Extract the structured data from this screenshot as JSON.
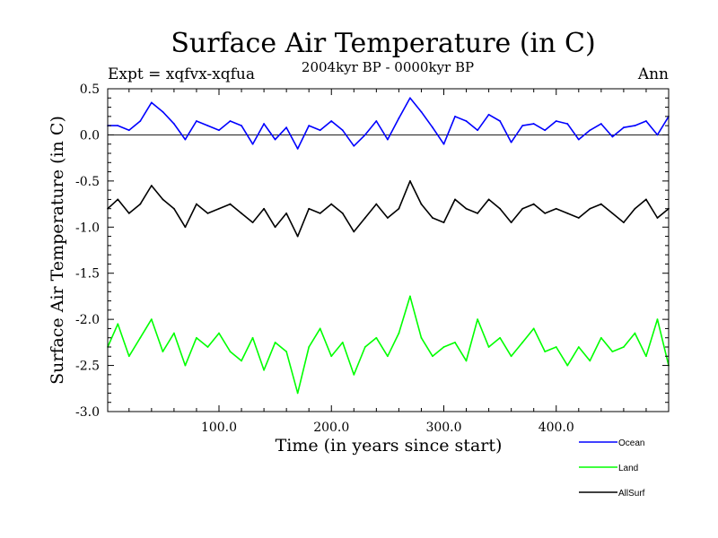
{
  "chart_data": {
    "type": "line",
    "title": "Surface Air Temperature (in C)",
    "subtitle": "2004kyr BP - 0000kyr BP",
    "expt_label": "Expt = xqfvx-xqfua",
    "season_label": "Ann",
    "xlabel": "Time (in years since start)",
    "ylabel": "Surface Air Temperature (in C)",
    "xlim": [
      1,
      500
    ],
    "ylim": [
      -3.0,
      0.5
    ],
    "x_ticks": [
      100,
      200,
      300,
      400
    ],
    "x_tick_labels": [
      "100.0",
      "200.0",
      "300.0",
      "400.0"
    ],
    "y_ticks": [
      0.5,
      0.0,
      -0.5,
      -1.0,
      -1.5,
      -2.0,
      -2.5,
      -3.0
    ],
    "y_tick_labels": [
      "0.5",
      "0.0",
      "-0.5",
      "-1.0",
      "-1.5",
      "-2.0",
      "-2.5",
      "-3.0"
    ],
    "zero_line": 0.0,
    "legend_position": "bottom-right",
    "series": [
      {
        "name": "Ocean",
        "color": "#0000ff",
        "x": [
          1,
          10,
          20,
          30,
          40,
          50,
          60,
          70,
          80,
          90,
          100,
          110,
          120,
          130,
          140,
          150,
          160,
          170,
          180,
          190,
          200,
          210,
          220,
          230,
          240,
          250,
          260,
          270,
          280,
          290,
          300,
          310,
          320,
          330,
          340,
          350,
          360,
          370,
          380,
          390,
          400,
          410,
          420,
          430,
          440,
          450,
          460,
          470,
          480,
          490,
          500
        ],
        "values": [
          0.1,
          0.1,
          0.05,
          0.15,
          0.35,
          0.25,
          0.12,
          -0.05,
          0.15,
          0.1,
          0.05,
          0.15,
          0.1,
          -0.1,
          0.12,
          -0.05,
          0.08,
          -0.15,
          0.1,
          0.05,
          0.15,
          0.05,
          -0.12,
          0.0,
          0.15,
          -0.05,
          0.18,
          0.4,
          0.25,
          0.08,
          -0.1,
          0.2,
          0.15,
          0.05,
          0.22,
          0.15,
          -0.08,
          0.1,
          0.12,
          0.05,
          0.15,
          0.12,
          -0.05,
          0.05,
          0.12,
          -0.02,
          0.08,
          0.1,
          0.15,
          0.0,
          0.2
        ]
      },
      {
        "name": "Land",
        "color": "#00ff00",
        "x": [
          1,
          10,
          20,
          30,
          40,
          50,
          60,
          70,
          80,
          90,
          100,
          110,
          120,
          130,
          140,
          150,
          160,
          170,
          180,
          190,
          200,
          210,
          220,
          230,
          240,
          250,
          260,
          270,
          280,
          290,
          300,
          310,
          320,
          330,
          340,
          350,
          360,
          370,
          380,
          390,
          400,
          410,
          420,
          430,
          440,
          450,
          460,
          470,
          480,
          490,
          500
        ],
        "values": [
          -2.3,
          -2.05,
          -2.4,
          -2.2,
          -2.0,
          -2.35,
          -2.15,
          -2.5,
          -2.2,
          -2.3,
          -2.15,
          -2.35,
          -2.45,
          -2.2,
          -2.55,
          -2.25,
          -2.35,
          -2.8,
          -2.3,
          -2.1,
          -2.4,
          -2.25,
          -2.6,
          -2.3,
          -2.2,
          -2.4,
          -2.15,
          -1.75,
          -2.2,
          -2.4,
          -2.3,
          -2.25,
          -2.45,
          -2.0,
          -2.3,
          -2.2,
          -2.4,
          -2.25,
          -2.1,
          -2.35,
          -2.3,
          -2.5,
          -2.3,
          -2.45,
          -2.2,
          -2.35,
          -2.3,
          -2.15,
          -2.4,
          -2.0,
          -2.5
        ]
      },
      {
        "name": "AllSurf",
        "color": "#000000",
        "x": [
          1,
          10,
          20,
          30,
          40,
          50,
          60,
          70,
          80,
          90,
          100,
          110,
          120,
          130,
          140,
          150,
          160,
          170,
          180,
          190,
          200,
          210,
          220,
          230,
          240,
          250,
          260,
          270,
          280,
          290,
          300,
          310,
          320,
          330,
          340,
          350,
          360,
          370,
          380,
          390,
          400,
          410,
          420,
          430,
          440,
          450,
          460,
          470,
          480,
          490,
          500
        ],
        "values": [
          -0.8,
          -0.7,
          -0.85,
          -0.75,
          -0.55,
          -0.7,
          -0.8,
          -1.0,
          -0.75,
          -0.85,
          -0.8,
          -0.75,
          -0.85,
          -0.95,
          -0.8,
          -1.0,
          -0.85,
          -1.1,
          -0.8,
          -0.85,
          -0.75,
          -0.85,
          -1.05,
          -0.9,
          -0.75,
          -0.9,
          -0.8,
          -0.5,
          -0.75,
          -0.9,
          -0.95,
          -0.7,
          -0.8,
          -0.85,
          -0.7,
          -0.8,
          -0.95,
          -0.8,
          -0.75,
          -0.85,
          -0.8,
          -0.85,
          -0.9,
          -0.8,
          -0.75,
          -0.85,
          -0.95,
          -0.8,
          -0.7,
          -0.9,
          -0.8
        ]
      }
    ]
  }
}
